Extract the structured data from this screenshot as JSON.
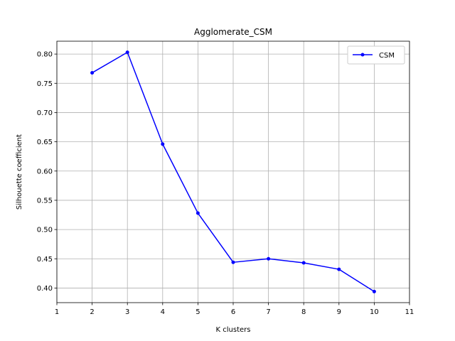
{
  "chart_data": {
    "type": "line",
    "title": "Agglomerate_CSM",
    "xlabel": "K clusters",
    "ylabel": "Silhouette coefficient",
    "x": [
      2,
      3,
      4,
      5,
      6,
      7,
      8,
      9,
      10
    ],
    "series": [
      {
        "name": "CSM",
        "values": [
          0.768,
          0.803,
          0.646,
          0.528,
          0.444,
          0.45,
          0.443,
          0.432,
          0.394
        ],
        "color": "#0000ff",
        "marker": "circle"
      }
    ],
    "xlim": [
      1,
      11
    ],
    "ylim": [
      0.375,
      0.822
    ],
    "xticks": [
      1,
      2,
      3,
      4,
      5,
      6,
      7,
      8,
      9,
      10,
      11
    ],
    "xtick_labels": [
      "1",
      "2",
      "3",
      "4",
      "5",
      "6",
      "7",
      "8",
      "9",
      "10",
      "11"
    ],
    "yticks": [
      0.4,
      0.45,
      0.5,
      0.55,
      0.6,
      0.65,
      0.7,
      0.75,
      0.8
    ],
    "ytick_labels": [
      "0.40",
      "0.45",
      "0.50",
      "0.55",
      "0.60",
      "0.65",
      "0.70",
      "0.75",
      "0.80"
    ],
    "grid": true,
    "legend_position": "top-right"
  }
}
